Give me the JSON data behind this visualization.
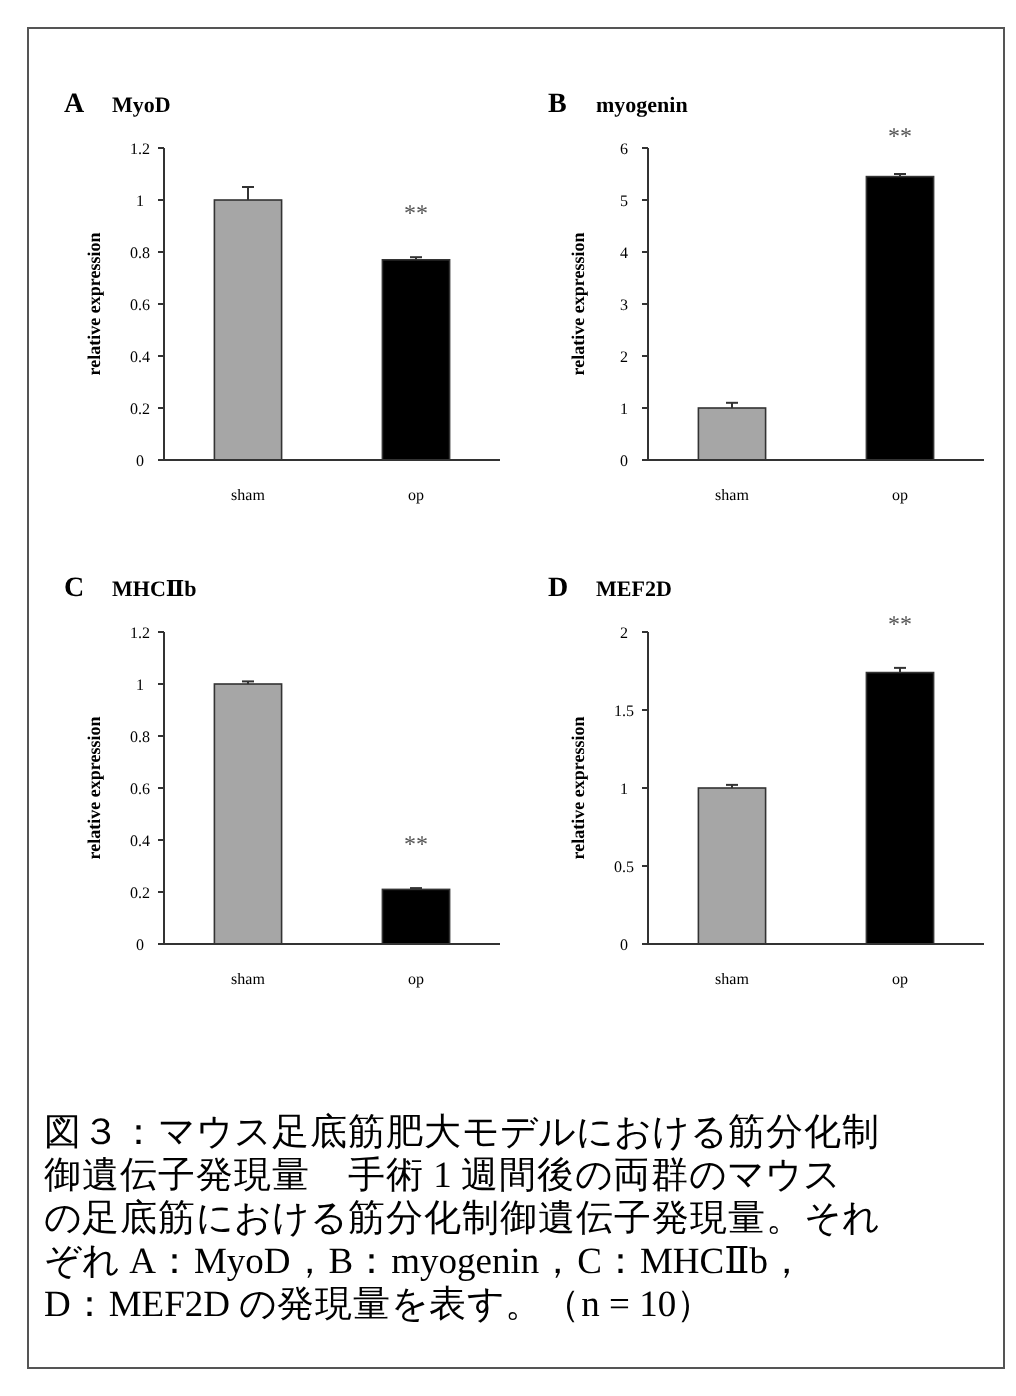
{
  "chart_data": [
    {
      "type": "bar",
      "title": "A",
      "subtitle": "MyoD",
      "ylabel": "relative expression",
      "categories": [
        "sham",
        "op"
      ],
      "values": [
        1.0,
        0.77
      ],
      "errors": [
        0.05,
        0.01
      ],
      "colors": [
        "#a6a6a6",
        "#000000"
      ],
      "ylim": [
        0,
        1.2
      ],
      "yticks": [
        0,
        0.2,
        0.4,
        0.6,
        0.8,
        1,
        1.2
      ],
      "annotations": [
        "**"
      ]
    },
    {
      "type": "bar",
      "title": "B",
      "subtitle": "myogenin",
      "ylabel": "relative expression",
      "categories": [
        "sham",
        "op"
      ],
      "values": [
        1.0,
        5.45
      ],
      "errors": [
        0.1,
        0.05
      ],
      "colors": [
        "#a6a6a6",
        "#000000"
      ],
      "ylim": [
        0,
        6
      ],
      "yticks": [
        0,
        1,
        2,
        3,
        4,
        5,
        6
      ],
      "annotations": [
        "**"
      ]
    },
    {
      "type": "bar",
      "title": "C",
      "subtitle": "MHCⅡb",
      "ylabel": "relative expression",
      "categories": [
        "sham",
        "op"
      ],
      "values": [
        1.0,
        0.21
      ],
      "errors": [
        0.01,
        0.005
      ],
      "colors": [
        "#a6a6a6",
        "#000000"
      ],
      "ylim": [
        0,
        1.2
      ],
      "yticks": [
        0,
        0.2,
        0.4,
        0.6,
        0.8,
        1,
        1.2
      ],
      "annotations": [
        "**"
      ]
    },
    {
      "type": "bar",
      "title": "D",
      "subtitle": "MEF2D",
      "ylabel": "relative expression",
      "categories": [
        "sham",
        "op"
      ],
      "values": [
        1.0,
        1.74
      ],
      "errors": [
        0.02,
        0.03
      ],
      "colors": [
        "#a6a6a6",
        "#000000"
      ],
      "ylim": [
        0,
        2
      ],
      "yticks": [
        0,
        0.5,
        1,
        1.5,
        2
      ],
      "annotations": [
        "**"
      ]
    },
    {
      "type": "other",
      "annotations": [
        "図３：マウス足底筋肥大モデルにおける筋分化制",
        "御遺伝子発現量　手術 1 週間後の両群のマウス",
        "の足底筋における筋分化制御遺伝子発現量。それ",
        "ぞれ A：MyoD，B：myogenin，C：MHCⅡb，",
        "D：MEF2D の発現量を表す。（n = 10）"
      ]
    }
  ]
}
